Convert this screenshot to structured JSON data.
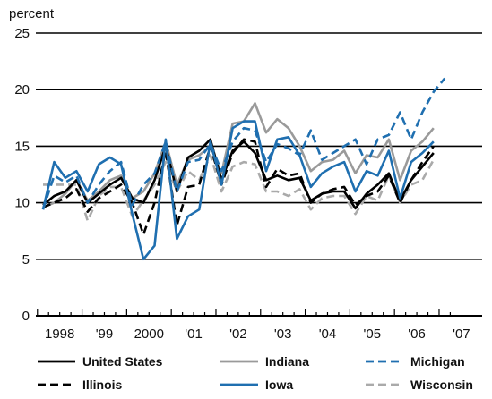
{
  "chart_data": {
    "type": "line",
    "title": "",
    "ylabel": "percent",
    "xlabel": "",
    "ylim": [
      0,
      25
    ],
    "yticks": [
      "0",
      "5",
      "10",
      "15",
      "20",
      "25"
    ],
    "xtick_labels": [
      "1998",
      "'99",
      "2000",
      "'01",
      "'02",
      "'03",
      "'04",
      "'05",
      "'06",
      "'07"
    ],
    "x_quarters": [
      "1998Q1",
      "1998Q2",
      "1998Q3",
      "1998Q4",
      "1999Q1",
      "1999Q2",
      "1999Q3",
      "1999Q4",
      "2000Q1",
      "2000Q2",
      "2000Q3",
      "2000Q4",
      "2001Q1",
      "2001Q2",
      "2001Q3",
      "2001Q4",
      "2002Q1",
      "2002Q2",
      "2002Q3",
      "2002Q4",
      "2003Q1",
      "2003Q2",
      "2003Q3",
      "2003Q4",
      "2004Q1",
      "2004Q2",
      "2004Q3",
      "2004Q4",
      "2005Q1",
      "2005Q2",
      "2005Q3",
      "2005Q4",
      "2006Q1",
      "2006Q2",
      "2006Q3",
      "2006Q4",
      "2007Q1"
    ],
    "grid": "horizontal",
    "legend_position": "bottom",
    "series": [
      {
        "name": "United States",
        "color": "#000000",
        "dash": "solid",
        "width": 2.6,
        "values": [
          9.8,
          10.6,
          11.0,
          12.0,
          10.0,
          10.8,
          11.6,
          12.2,
          10.4,
          10.0,
          12.0,
          15.0,
          11.0,
          14.0,
          14.6,
          15.6,
          12.0,
          14.6,
          15.4,
          14.4,
          12.0,
          12.4,
          12.0,
          12.2,
          10.2,
          10.8,
          11.0,
          11.0,
          9.5,
          10.8,
          11.6,
          12.6,
          10.2,
          12.0,
          13.2,
          14.4,
          null
        ]
      },
      {
        "name": "Indiana",
        "color": "#9a9a9a",
        "dash": "solid",
        "width": 2.6,
        "values": [
          9.6,
          10.0,
          10.8,
          12.0,
          10.2,
          11.0,
          12.0,
          12.4,
          10.4,
          11.0,
          12.6,
          15.4,
          11.6,
          13.8,
          14.2,
          15.0,
          12.6,
          17.0,
          17.2,
          18.8,
          16.2,
          17.4,
          16.6,
          15.0,
          12.8,
          13.6,
          13.8,
          14.6,
          12.6,
          14.2,
          14.0,
          15.6,
          12.0,
          14.6,
          15.4,
          16.6,
          null
        ]
      },
      {
        "name": "Michigan",
        "color": "#1f6fb0",
        "dash": "dashed",
        "width": 2.6,
        "values": [
          9.4,
          12.4,
          11.8,
          12.4,
          10.0,
          11.6,
          12.8,
          13.6,
          9.8,
          11.6,
          12.6,
          15.4,
          11.0,
          13.6,
          13.8,
          15.2,
          12.8,
          15.4,
          16.6,
          16.4,
          13.6,
          15.2,
          14.8,
          14.2,
          16.4,
          13.8,
          14.4,
          15.0,
          15.6,
          13.4,
          15.6,
          16.0,
          18.0,
          15.6,
          18.0,
          19.8,
          21.0
        ]
      },
      {
        "name": "Illinois",
        "color": "#000000",
        "dash": "dashed",
        "width": 2.6,
        "values": [
          9.6,
          10.0,
          10.4,
          11.2,
          9.2,
          10.4,
          11.0,
          11.6,
          10.0,
          7.2,
          10.0,
          14.6,
          8.0,
          11.4,
          11.6,
          15.0,
          11.6,
          14.4,
          15.6,
          15.4,
          11.4,
          13.0,
          12.4,
          12.6,
          10.0,
          10.8,
          11.2,
          11.4,
          9.8,
          10.6,
          11.0,
          12.4,
          10.0,
          12.0,
          13.6,
          15.0,
          null
        ]
      },
      {
        "name": "Iowa",
        "color": "#1f6fb0",
        "dash": "solid",
        "width": 2.6,
        "values": [
          9.4,
          13.6,
          12.2,
          12.8,
          11.0,
          13.4,
          14.0,
          13.4,
          9.0,
          5.0,
          6.2,
          15.6,
          6.8,
          8.8,
          9.4,
          15.4,
          11.6,
          16.6,
          17.2,
          17.2,
          12.8,
          15.6,
          15.8,
          14.2,
          11.4,
          12.6,
          13.2,
          13.6,
          11.0,
          12.8,
          12.4,
          14.6,
          10.4,
          13.6,
          14.4,
          15.4,
          null
        ]
      },
      {
        "name": "Wisconsin",
        "color": "#aaaaaa",
        "dash": "dashed",
        "width": 2.6,
        "values": [
          11.6,
          11.6,
          11.6,
          11.6,
          8.4,
          10.6,
          11.4,
          11.4,
          8.8,
          10.2,
          11.6,
          13.6,
          11.0,
          12.8,
          12.0,
          14.2,
          11.0,
          13.2,
          13.6,
          13.4,
          11.0,
          11.0,
          10.6,
          11.2,
          9.4,
          10.4,
          10.6,
          10.6,
          9.0,
          10.6,
          10.2,
          12.4,
          10.0,
          11.6,
          12.0,
          13.8,
          null
        ]
      }
    ]
  }
}
